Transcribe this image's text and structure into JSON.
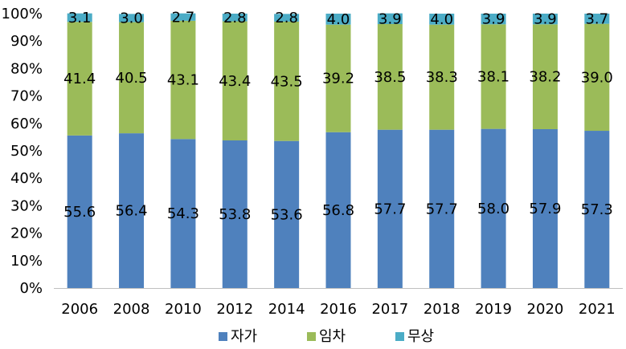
{
  "chart_data": {
    "type": "bar",
    "stacked": true,
    "percent": true,
    "categories": [
      "2006",
      "2008",
      "2010",
      "2012",
      "2014",
      "2016",
      "2017",
      "2018",
      "2019",
      "2020",
      "2021"
    ],
    "series": [
      {
        "name": "자가",
        "color": "#4F81BD",
        "values": [
          55.6,
          56.4,
          54.3,
          53.8,
          53.6,
          56.8,
          57.7,
          57.7,
          58.0,
          57.9,
          57.3
        ]
      },
      {
        "name": "임차",
        "color": "#9BBB59",
        "values": [
          41.4,
          40.5,
          43.1,
          43.4,
          43.5,
          39.2,
          38.5,
          38.3,
          38.1,
          38.2,
          39.0
        ]
      },
      {
        "name": "무상",
        "color": "#4BACC6",
        "values": [
          3.1,
          3.0,
          2.7,
          2.8,
          2.8,
          4.0,
          3.9,
          4.0,
          3.9,
          3.9,
          3.7
        ]
      }
    ],
    "value_labels": {
      "자가": [
        "55.6",
        "56.4",
        "54.3",
        "53.8",
        "53.6",
        "56.8",
        "57.7",
        "57.7",
        "58.0",
        "57.9",
        "57.3"
      ],
      "임차": [
        "41.4",
        "40.5",
        "43.1",
        "43.4",
        "43.5",
        "39.2",
        "38.5",
        "38.3",
        "38.1",
        "38.2",
        "39.0"
      ],
      "무상": [
        "3.1",
        "3.0",
        "2.7",
        "2.8",
        "2.8",
        "4.0",
        "3.9",
        "4.0",
        "3.9",
        "3.9",
        "3.7"
      ]
    },
    "y_ticks": [
      "0%",
      "10%",
      "20%",
      "30%",
      "40%",
      "50%",
      "60%",
      "70%",
      "80%",
      "90%",
      "100%"
    ],
    "ylim": [
      0,
      100
    ],
    "grid": false,
    "legend": "bottom-center"
  }
}
